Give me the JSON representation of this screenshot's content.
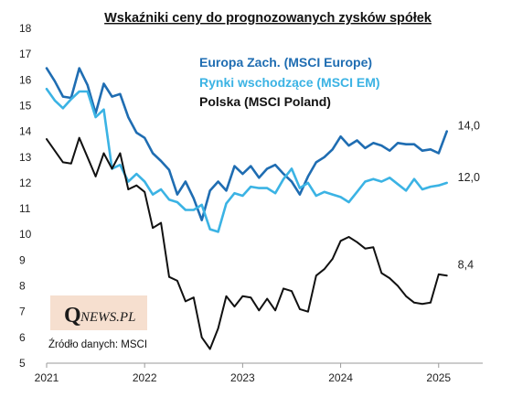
{
  "chart_data": {
    "type": "line",
    "title": "Wskaźniki  ceny do prognozowanych  zysków spółek",
    "xlabel": "",
    "ylabel": "",
    "ylim": [
      5,
      18
    ],
    "yticks": [
      "5",
      "6",
      "7",
      "8",
      "9",
      "10",
      "11",
      "12",
      "13",
      "14",
      "15",
      "16",
      "17",
      "18"
    ],
    "xlim": [
      2021.0,
      2025.45
    ],
    "xticks": [
      {
        "value": 2021,
        "label": "2021"
      },
      {
        "value": 2022,
        "label": "2022"
      },
      {
        "value": 2023,
        "label": "2023"
      },
      {
        "value": 2024,
        "label": "2024"
      },
      {
        "value": 2025,
        "label": "2025"
      }
    ],
    "grid": false,
    "legend_position": "top-right",
    "source_text": "Źródło danych: MSCI",
    "logo": {
      "letter": "Q",
      "text": "NEWS.PL",
      "background": "#f6dfcf"
    },
    "series": [
      {
        "name": "Europa Zach. (MSCI Europe)",
        "color": "#1f6db2",
        "end_label": "14,0",
        "x": [
          2021.0,
          2021.083,
          2021.167,
          2021.25,
          2021.333,
          2021.417,
          2021.5,
          2021.583,
          2021.667,
          2021.75,
          2021.833,
          2021.917,
          2022.0,
          2022.083,
          2022.167,
          2022.25,
          2022.333,
          2022.417,
          2022.5,
          2022.583,
          2022.667,
          2022.75,
          2022.833,
          2022.917,
          2023.0,
          2023.083,
          2023.167,
          2023.25,
          2023.333,
          2023.417,
          2023.5,
          2023.583,
          2023.667,
          2023.75,
          2023.833,
          2023.917,
          2024.0,
          2024.083,
          2024.167,
          2024.25,
          2024.333,
          2024.417,
          2024.5,
          2024.583,
          2024.667,
          2024.75,
          2024.833,
          2024.917,
          2025.0,
          2025.083
        ],
        "values": [
          16.45,
          15.95,
          15.35,
          15.3,
          16.45,
          15.8,
          14.7,
          15.85,
          15.35,
          15.45,
          14.55,
          13.95,
          13.75,
          13.15,
          12.85,
          12.5,
          11.55,
          12.05,
          11.4,
          10.55,
          11.7,
          12.05,
          11.7,
          12.65,
          12.35,
          12.65,
          12.2,
          12.55,
          12.7,
          12.35,
          12.05,
          11.55,
          12.25,
          12.8,
          13.0,
          13.3,
          13.8,
          13.45,
          13.65,
          13.35,
          13.55,
          13.45,
          13.25,
          13.55,
          13.5,
          13.5,
          13.25,
          13.3,
          13.15,
          14.0
        ]
      },
      {
        "name": "Rynki wschodzące (MSCI EM)",
        "color": "#3bb3e4",
        "end_label": "12,0",
        "x": [
          2021.0,
          2021.083,
          2021.167,
          2021.25,
          2021.333,
          2021.417,
          2021.5,
          2021.583,
          2021.667,
          2021.75,
          2021.833,
          2021.917,
          2022.0,
          2022.083,
          2022.167,
          2022.25,
          2022.333,
          2022.417,
          2022.5,
          2022.583,
          2022.667,
          2022.75,
          2022.833,
          2022.917,
          2023.0,
          2023.083,
          2023.167,
          2023.25,
          2023.333,
          2023.417,
          2023.5,
          2023.583,
          2023.667,
          2023.75,
          2023.833,
          2023.917,
          2024.0,
          2024.083,
          2024.167,
          2024.25,
          2024.333,
          2024.417,
          2024.5,
          2024.583,
          2024.667,
          2024.75,
          2024.833,
          2024.917,
          2025.0,
          2025.083
        ],
        "values": [
          15.65,
          15.2,
          14.9,
          15.25,
          15.55,
          15.55,
          14.55,
          14.85,
          12.55,
          12.7,
          12.05,
          12.35,
          12.05,
          11.55,
          11.75,
          11.35,
          11.25,
          10.95,
          10.95,
          11.15,
          10.2,
          10.1,
          11.2,
          11.6,
          11.5,
          11.85,
          11.8,
          11.8,
          11.6,
          12.15,
          12.55,
          11.8,
          12.0,
          11.5,
          11.65,
          11.55,
          11.45,
          11.25,
          11.65,
          12.05,
          12.15,
          12.05,
          12.2,
          11.95,
          11.7,
          12.15,
          11.75,
          11.85,
          11.9,
          12.0
        ]
      },
      {
        "name": "Polska (MSCI Poland)",
        "color": "#111111",
        "end_label": "8,4",
        "x": [
          2021.0,
          2021.083,
          2021.167,
          2021.25,
          2021.333,
          2021.417,
          2021.5,
          2021.583,
          2021.667,
          2021.75,
          2021.833,
          2021.917,
          2022.0,
          2022.083,
          2022.167,
          2022.25,
          2022.333,
          2022.417,
          2022.5,
          2022.583,
          2022.667,
          2022.75,
          2022.833,
          2022.917,
          2023.0,
          2023.083,
          2023.167,
          2023.25,
          2023.333,
          2023.417,
          2023.5,
          2023.583,
          2023.667,
          2023.75,
          2023.833,
          2023.917,
          2024.0,
          2024.083,
          2024.167,
          2024.25,
          2024.333,
          2024.417,
          2024.5,
          2024.583,
          2024.667,
          2024.75,
          2024.833,
          2024.917,
          2025.0,
          2025.083
        ],
        "values": [
          13.7,
          13.25,
          12.8,
          12.75,
          13.75,
          13.0,
          12.25,
          13.15,
          12.55,
          13.15,
          11.75,
          11.9,
          11.65,
          10.25,
          10.45,
          8.35,
          8.2,
          7.4,
          7.55,
          6.0,
          5.55,
          6.35,
          7.6,
          7.2,
          7.6,
          7.55,
          7.05,
          7.5,
          7.05,
          7.9,
          7.8,
          7.1,
          7.0,
          8.4,
          8.65,
          9.05,
          9.75,
          9.9,
          9.7,
          9.45,
          9.5,
          8.5,
          8.3,
          8.0,
          7.6,
          7.35,
          7.3,
          7.35,
          8.45,
          8.4
        ]
      }
    ]
  }
}
